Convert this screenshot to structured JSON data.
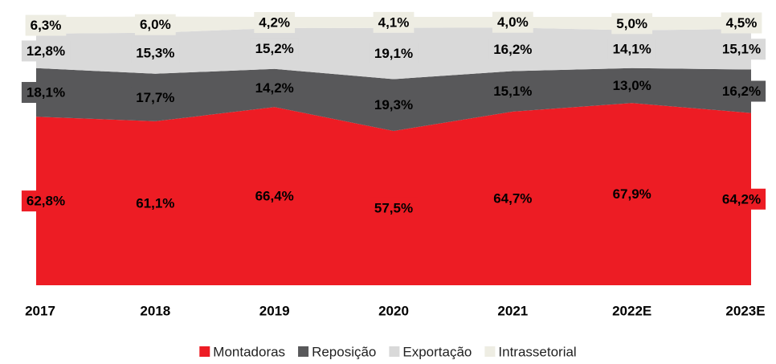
{
  "chart_data": {
    "type": "stacked_area",
    "categories": [
      "2017",
      "2018",
      "2019",
      "2020",
      "2021",
      "2022E",
      "2023E"
    ],
    "series": [
      {
        "name": "Montadoras",
        "color": "#ed1c24",
        "values": [
          62.8,
          61.1,
          66.4,
          57.5,
          64.7,
          67.9,
          64.2
        ],
        "value_labels": [
          "62,8%",
          "61,1%",
          "66,4%",
          "57,5%",
          "64,7%",
          "67,9%",
          "64,2%"
        ]
      },
      {
        "name": "Reposição",
        "color": "#58585a",
        "values": [
          18.1,
          17.7,
          14.2,
          19.3,
          15.1,
          13.0,
          16.2
        ],
        "value_labels": [
          "18,1%",
          "17,7%",
          "14,2%",
          "19,3%",
          "15,1%",
          "13,0%",
          "16,2%"
        ]
      },
      {
        "name": "Exportação",
        "color": "#d9d9d9",
        "values": [
          12.8,
          15.3,
          15.2,
          19.1,
          16.2,
          14.1,
          15.1
        ],
        "value_labels": [
          "12,8%",
          "15,3%",
          "15,2%",
          "19,1%",
          "16,2%",
          "14,1%",
          "15,1%"
        ]
      },
      {
        "name": "Intrassetorial",
        "color": "#eeede3",
        "values": [
          6.3,
          6.0,
          4.2,
          4.1,
          4.0,
          5.0,
          4.5
        ],
        "value_labels": [
          "6,3%",
          "6,0%",
          "4,2%",
          "4,1%",
          "4,0%",
          "5,0%",
          "4,5%"
        ]
      }
    ],
    "ylim": [
      0,
      100
    ]
  }
}
